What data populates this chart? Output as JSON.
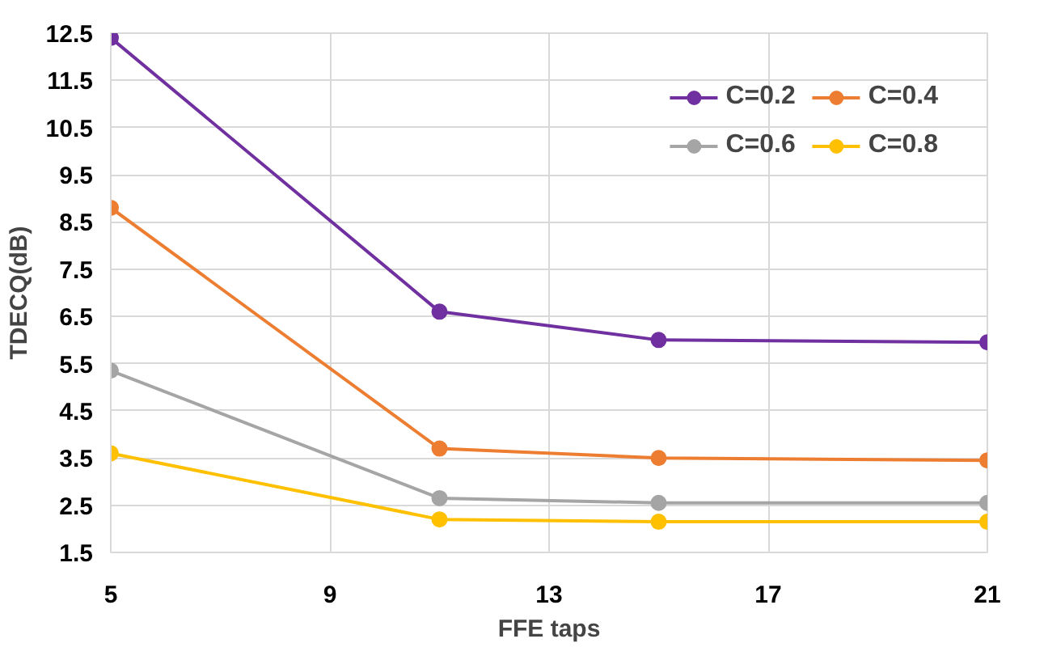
{
  "chart_data": {
    "type": "line",
    "xlabel": "FFE taps",
    "ylabel": "TDECQ(dB)",
    "x": [
      5,
      11,
      15,
      21
    ],
    "series": [
      {
        "name": "C=0.2",
        "color": "#7030a0",
        "values": [
          12.4,
          6.6,
          6.0,
          5.95
        ]
      },
      {
        "name": "C=0.4",
        "color": "#ed7d31",
        "values": [
          8.8,
          3.7,
          3.5,
          3.45
        ]
      },
      {
        "name": "C=0.6",
        "color": "#a5a5a5",
        "values": [
          5.35,
          2.65,
          2.55,
          2.55
        ]
      },
      {
        "name": "C=0.8",
        "color": "#ffc000",
        "values": [
          3.6,
          2.2,
          2.15,
          2.15
        ]
      }
    ],
    "xlim": [
      5,
      21
    ],
    "xticks": [
      5,
      9,
      13,
      17,
      21
    ],
    "ylim": [
      1.5,
      12.5
    ],
    "yticks": [
      1.5,
      2.5,
      3.5,
      4.5,
      5.5,
      6.5,
      7.5,
      8.5,
      9.5,
      10.5,
      11.5,
      12.5
    ],
    "grid": true,
    "legend": "top right",
    "marker": "circle",
    "line_style": "solid"
  }
}
